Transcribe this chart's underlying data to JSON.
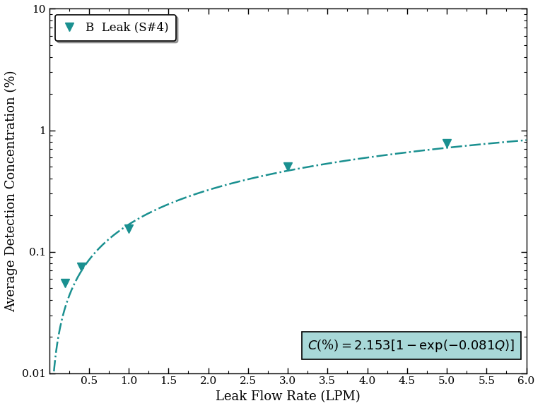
{
  "title": "",
  "xlabel": "Leak Flow Rate (LPM)",
  "ylabel": "Average Detection Concentration (%)",
  "xlim": [
    0.0,
    6.0
  ],
  "ylim": [
    0.01,
    10
  ],
  "xticks": [
    0.5,
    1.0,
    1.5,
    2.0,
    2.5,
    3.0,
    3.5,
    4.0,
    4.5,
    5.0,
    5.5,
    6.0
  ],
  "data_x": [
    0.2,
    0.4,
    1.0,
    3.0,
    5.0
  ],
  "data_y": [
    0.055,
    0.075,
    0.155,
    0.5,
    0.78
  ],
  "fit_a": 2.153,
  "fit_b": 0.081,
  "legend_label": "B  Leak (S#4)",
  "marker_color": "#1a9090",
  "line_color": "#1a9090",
  "equation_box_color": "#a8d8d8",
  "equation_text": "C(%) = 2.153[1–exp(−0.081Q)]"
}
